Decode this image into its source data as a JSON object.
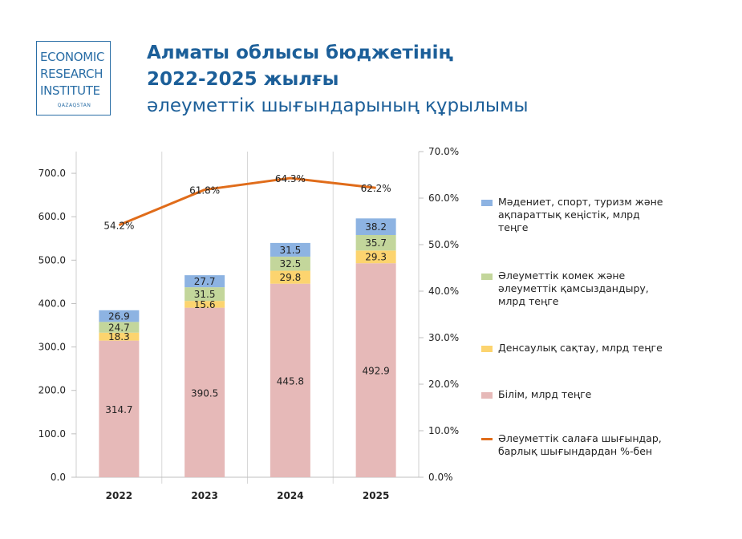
{
  "logo": {
    "lines": [
      "ECONOMIC",
      "RESEARCH",
      "INSTITUTE"
    ],
    "sub": "QAZAQSTAN"
  },
  "title": {
    "line1": "Алматы облысы бюджетінің",
    "line2": "2022-2025 жылғы",
    "line3": "әлеуметтік шығындарының құрылымы"
  },
  "colors": {
    "culture": "#8db3e2",
    "social": "#c3d69b",
    "health": "#fcd46f",
    "education": "#e6b9b8",
    "line": "#e06c1a",
    "title": "#1c5f99"
  },
  "chart_data": {
    "type": "bar",
    "stacked": true,
    "categories": [
      "2022",
      "2023",
      "2024",
      "2025"
    ],
    "series": [
      {
        "name": "Білім, млрд теңге",
        "key": "education",
        "values": [
          314.7,
          390.5,
          445.8,
          492.9
        ]
      },
      {
        "name": "Денсаулық сақтау, млрд теңге",
        "key": "health",
        "values": [
          18.3,
          15.6,
          29.8,
          29.3
        ]
      },
      {
        "name": "Әлеуметтік комек және әлеуметтік қамсыздандыру, млрд теңге",
        "key": "social",
        "values": [
          24.7,
          31.5,
          32.5,
          35.7
        ]
      },
      {
        "name": "Мәдениет, спорт, туризм және ақпараттық кеңістік, млрд теңге",
        "key": "culture",
        "values": [
          26.9,
          27.7,
          31.5,
          38.2
        ]
      }
    ],
    "line_series": {
      "name": "Әлеуметтік салаға шығындар, барлық шығындардан %-бен",
      "axis": "right",
      "values": [
        54.2,
        61.8,
        64.3,
        62.2
      ],
      "labels": [
        "54.2%",
        "61.8%",
        "64.3%",
        "62.2%"
      ]
    },
    "y_left": {
      "min": 0,
      "max": 750,
      "ticks": [
        "0.0",
        "100.0",
        "200.0",
        "300.0",
        "400.0",
        "500.0",
        "600.0",
        "700.0"
      ]
    },
    "y_right": {
      "min": 0,
      "max": 70,
      "ticks": [
        "0.0%",
        "10.0%",
        "20.0%",
        "30.0%",
        "40.0%",
        "50.0%",
        "60.0%",
        "70.0%"
      ]
    },
    "grid": true,
    "legend_position": "right"
  },
  "legend": [
    {
      "key": "culture",
      "label_lines": [
        "Мәдениет, спорт, туризм және",
        "ақпараттық кеңістік, млрд",
        "теңге"
      ]
    },
    {
      "key": "social",
      "label_lines": [
        "Әлеуметтік комек және",
        "әлеуметтік қамсыздандыру,",
        "млрд теңге"
      ]
    },
    {
      "key": "health",
      "label_lines": [
        "Денсаулық сақтау, млрд теңге"
      ]
    },
    {
      "key": "education",
      "label_lines": [
        "Білім, млрд теңге"
      ]
    },
    {
      "key": "line",
      "label_lines": [
        "Әлеуметтік салаға шығындар,",
        "барлық шығындардан %-бен"
      ]
    }
  ]
}
